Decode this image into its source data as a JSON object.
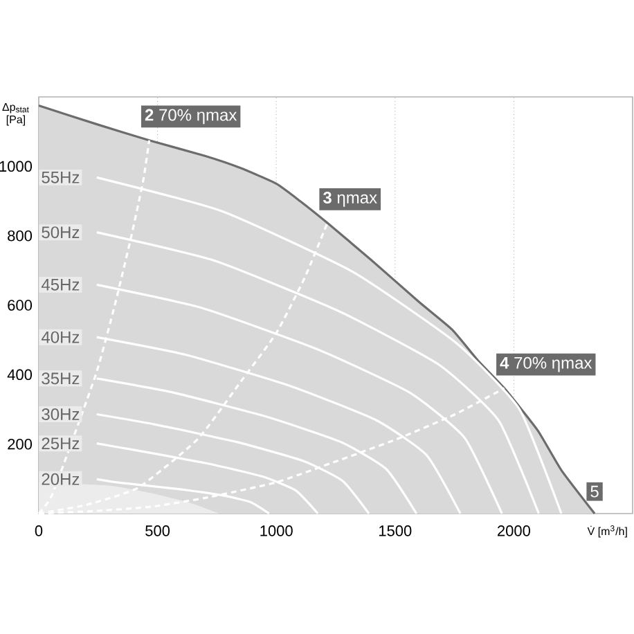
{
  "chart_data": {
    "type": "line",
    "xlabel": "V̇ [m$^{3}$/h]",
    "ylabel": "Δp$_{stat}$ [Pa]",
    "xlim": [
      0,
      2500
    ],
    "ylim": [
      0,
      1200
    ],
    "xticks": [
      0,
      500,
      1000,
      1500,
      2000
    ],
    "yticks": [
      200,
      400,
      600,
      800,
      1000
    ],
    "grid": "x",
    "series": [
      {
        "type": "area",
        "color": "#d9d9d9",
        "line_style": "solid",
        "x": [
          0,
          250,
          465,
          700,
          850,
          1000,
          1100,
          1215,
          1400,
          1600,
          1740,
          1850,
          1960,
          2100,
          2200,
          2340
        ],
        "values": [
          1175,
          1120,
          1075,
          1030,
          995,
          950,
          900,
          837,
          730,
          610,
          530,
          440,
          361,
          240,
          125,
          0
        ]
      },
      {
        "type": "area",
        "color": "#ececec",
        "x": [
          0,
          300,
          500,
          650,
          760
        ],
        "values": [
          90,
          80,
          55,
          28,
          0
        ]
      },
      {
        "type": "line",
        "name": "55Hz",
        "color": "#ffffff",
        "x": [
          244,
          770,
          1320,
          1760,
          2024,
          2200
        ],
        "values": [
          968,
          871,
          697,
          490,
          300,
          0
        ]
      },
      {
        "type": "line",
        "name": "50Hz",
        "color": "#ffffff",
        "x": [
          244,
          737,
          1263,
          1684,
          1937,
          2105
        ],
        "values": [
          810,
          729,
          583,
          429,
          267,
          0
        ]
      },
      {
        "type": "line",
        "name": "45Hz",
        "color": "#ffffff",
        "x": [
          244,
          683,
          1170,
          1560,
          1794,
          1950
        ],
        "values": [
          659,
          593,
          474,
          349,
          217,
          0
        ]
      },
      {
        "type": "line",
        "name": "40Hz",
        "color": "#ffffff",
        "x": [
          244,
          621,
          1065,
          1420,
          1633,
          1775
        ],
        "values": [
          508,
          457,
          366,
          269,
          168,
          0
        ]
      },
      {
        "type": "line",
        "name": "35Hz",
        "color": "#ffffff",
        "x": [
          244,
          557,
          954,
          1272,
          1463,
          1590
        ],
        "values": [
          389,
          350,
          280,
          206,
          128,
          0
        ]
      },
      {
        "type": "line",
        "name": "30Hz",
        "color": "#ffffff",
        "x": [
          244,
          487,
          834,
          1112,
          1279,
          1390
        ],
        "values": [
          286,
          257,
          206,
          152,
          94,
          0
        ]
      },
      {
        "type": "line",
        "name": "25Hz",
        "color": "#ffffff",
        "x": [
          244,
          411,
          705,
          940,
          1081,
          1175
        ],
        "values": [
          202,
          182,
          145,
          107,
          67,
          0
        ]
      },
      {
        "type": "line",
        "name": "20Hz",
        "color": "#ffffff",
        "x": [
          244,
          340,
          582,
          776,
          892,
          970
        ],
        "values": [
          99,
          89,
          71,
          52,
          33,
          0
        ]
      },
      {
        "type": "line",
        "line_style": "dashed",
        "color": "#ffffff",
        "x": [
          0,
          60,
          140,
          240,
          320,
          390,
          440,
          465
        ],
        "values": [
          0,
          60,
          null,
          400,
          600,
          800,
          960,
          1075
        ]
      },
      {
        "type": "line",
        "line_style": "dashed",
        "color": "#ffffff",
        "x": [
          0,
          200,
          420,
          670,
          843,
          1000,
          1120,
          1215
        ],
        "values": [
          0,
          25,
          75,
          215,
          373,
          520,
          680,
          837
        ]
      },
      {
        "type": "line",
        "line_style": "dashed",
        "color": "#ffffff",
        "x": [
          0,
          250,
          477,
          700,
          1000,
          1250,
          1506,
          1750,
          1960
        ],
        "values": [
          0,
          8,
          20,
          45,
          90,
          150,
          214,
          285,
          361
        ]
      }
    ],
    "annotations": [
      {
        "text": "**2** 70% ηmax",
        "x": 465,
        "y": 1075
      },
      {
        "text": "**3** ηmax",
        "x": 1215,
        "y": 837
      },
      {
        "text": "**4** 70% ηmax",
        "x": 1960,
        "y": 361
      },
      {
        "text": "5",
        "x": 2340,
        "y": 0
      }
    ]
  }
}
